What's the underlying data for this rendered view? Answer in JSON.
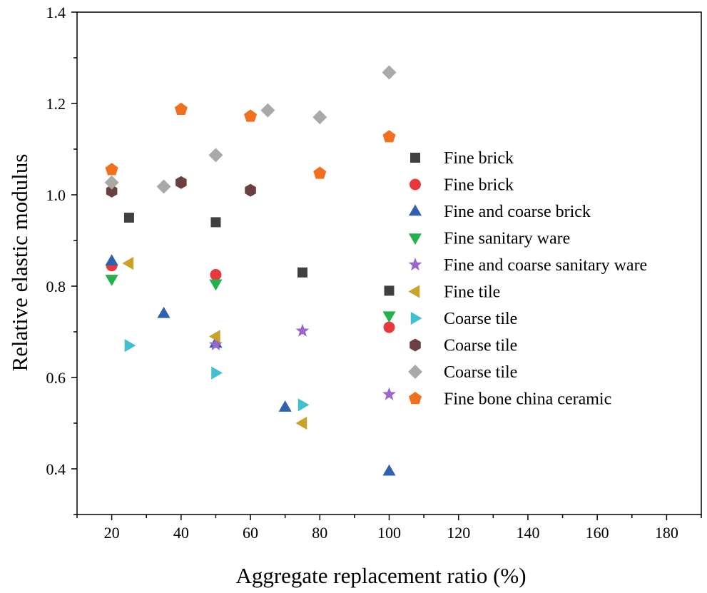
{
  "chart_data": {
    "type": "scatter",
    "xlabel": "Aggregate replacement ratio (%)",
    "ylabel": "Relative elastic modulus",
    "xlim": [
      10,
      190
    ],
    "ylim": [
      0.3,
      1.4
    ],
    "xticks": [
      20,
      40,
      60,
      80,
      100,
      120,
      140,
      160,
      180
    ],
    "yticks": [
      0.4,
      0.6,
      0.8,
      1.0,
      1.2,
      1.4
    ],
    "ytick_labels": [
      "0.4",
      "0.6",
      "0.8",
      "1.0",
      "1.2",
      "1.4"
    ],
    "legend_position": "right",
    "series": [
      {
        "name": "Fine brick",
        "marker": "square",
        "color": "#404040",
        "points": [
          [
            25,
            0.95
          ],
          [
            50,
            0.94
          ],
          [
            75,
            0.83
          ],
          [
            100,
            0.79
          ]
        ]
      },
      {
        "name": "Fine brick",
        "marker": "circle",
        "color": "#e8383d",
        "points": [
          [
            20,
            0.845
          ],
          [
            50,
            0.825
          ],
          [
            100,
            0.71
          ]
        ]
      },
      {
        "name": "Fine and coarse brick",
        "marker": "triangle-up",
        "color": "#3060b0",
        "points": [
          [
            20,
            0.855
          ],
          [
            35,
            0.74
          ],
          [
            50,
            0.675
          ],
          [
            70,
            0.535
          ],
          [
            100,
            0.395
          ]
        ]
      },
      {
        "name": "Fine sanitary ware",
        "marker": "triangle-down",
        "color": "#22b14c",
        "points": [
          [
            20,
            0.815
          ],
          [
            50,
            0.805
          ],
          [
            100,
            0.735
          ]
        ]
      },
      {
        "name": "Fine and coarse sanitary ware",
        "marker": "star",
        "color": "#9966cc",
        "points": [
          [
            50,
            0.672
          ],
          [
            75,
            0.702
          ],
          [
            100,
            0.563
          ]
        ]
      },
      {
        "name": "Fine tile",
        "marker": "triangle-left",
        "color": "#c9a227",
        "points": [
          [
            25,
            0.85
          ],
          [
            50,
            0.69
          ],
          [
            75,
            0.5
          ]
        ]
      },
      {
        "name": "Coarse tile",
        "marker": "triangle-right",
        "color": "#40c0d0",
        "points": [
          [
            25,
            0.67
          ],
          [
            50,
            0.61
          ],
          [
            75,
            0.54
          ]
        ]
      },
      {
        "name": "Coarse tile",
        "marker": "hexagon",
        "color": "#6b4040",
        "points": [
          [
            20,
            1.008
          ],
          [
            40,
            1.027
          ],
          [
            60,
            1.01
          ]
        ]
      },
      {
        "name": "Coarse tile",
        "marker": "diamond",
        "color": "#a9a9a9",
        "points": [
          [
            20,
            1.027
          ],
          [
            35,
            1.018
          ],
          [
            50,
            1.087
          ],
          [
            65,
            1.185
          ],
          [
            80,
            1.17
          ],
          [
            100,
            1.268
          ]
        ]
      },
      {
        "name": "Fine bone china ceramic",
        "marker": "pentagon",
        "color": "#f07020",
        "points": [
          [
            20,
            1.055
          ],
          [
            40,
            1.187
          ],
          [
            60,
            1.172
          ],
          [
            80,
            1.047
          ],
          [
            100,
            1.127
          ]
        ]
      }
    ]
  }
}
